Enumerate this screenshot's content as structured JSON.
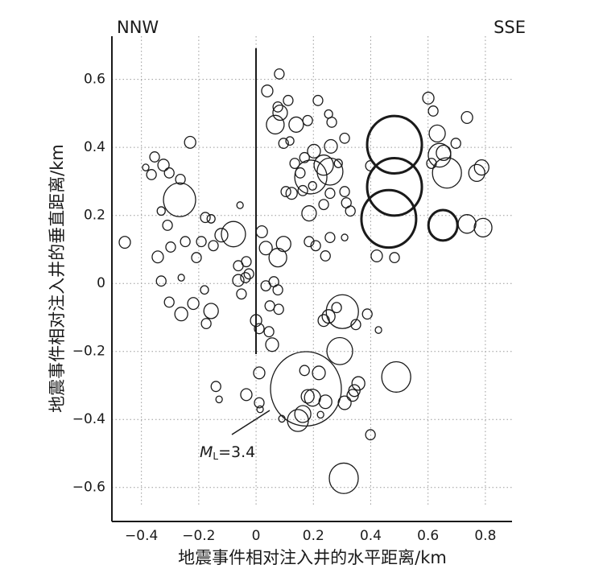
{
  "chart_data": {
    "type": "scatter",
    "x_label": "地震事件相对注入井的水平距离/km",
    "y_label": "地震事件相对注入井的垂直距离/km",
    "left_label": "NNW",
    "right_label": "SSE",
    "annotation": {
      "symbol": "M",
      "subscript": "L",
      "text": "=3.4"
    },
    "xlim": [
      -0.503,
      0.893
    ],
    "ylim": [
      -0.7,
      0.727
    ],
    "xticks": [
      {
        "value": -0.4,
        "label": "−0.4"
      },
      {
        "value": -0.2,
        "label": "−0.2"
      },
      0,
      0.2,
      0.4,
      0.6,
      0.8
    ],
    "yticks": [
      {
        "value": -0.6,
        "label": "−0.6"
      },
      {
        "value": -0.4,
        "label": "−0.4"
      },
      {
        "value": -0.2,
        "label": "−0.2"
      },
      0,
      0.2,
      0.4,
      0.6
    ],
    "grid": true,
    "series": [
      {
        "color": "#1a1a1a",
        "line_width": 1.3,
        "x": [
          -0.458,
          -0.354,
          -0.323,
          -0.365,
          -0.303,
          -0.264,
          -0.267,
          -0.23,
          -0.385,
          -0.331,
          -0.309,
          -0.177,
          -0.157,
          -0.343,
          -0.298,
          -0.247,
          -0.191,
          -0.149,
          -0.121,
          -0.079,
          -0.208,
          -0.331,
          -0.261,
          -0.303,
          -0.219,
          -0.261,
          -0.157,
          -0.18,
          -0.174,
          -0.14,
          -0.129,
          -0.056,
          -0.062,
          -0.034,
          -0.062,
          -0.037,
          -0.051,
          -0.025,
          0.0,
          0.011,
          -0.034,
          0.011,
          0.011,
          0.02,
          0.034,
          0.034,
          0.062,
          0.076,
          0.048,
          0.079,
          0.045,
          0.056,
          0.076,
          0.096,
          0.014,
          0.09,
          0.039,
          0.081,
          0.076,
          0.084,
          0.067,
          0.112,
          0.14,
          0.18,
          0.216,
          0.096,
          0.118,
          0.169,
          0.202,
          0.261,
          0.264,
          0.309,
          0.253,
          0.135,
          0.154,
          0.191,
          0.236,
          0.258,
          0.287,
          0.104,
          0.124,
          0.163,
          0.197,
          0.185,
          0.236,
          0.258,
          0.309,
          0.329,
          0.315,
          0.185,
          0.208,
          0.242,
          0.309,
          0.281,
          0.253,
          0.301,
          0.348,
          0.388,
          0.427,
          0.236,
          0.292,
          0.174,
          0.169,
          0.219,
          0.18,
          0.225,
          0.146,
          0.163,
          0.197,
          0.242,
          0.343,
          0.357,
          0.309,
          0.337,
          0.399,
          0.489,
          0.306,
          0.399,
          0.421,
          0.483,
          0.601,
          0.618,
          0.632,
          0.64,
          0.666,
          0.654,
          0.697,
          0.736,
          0.736,
          0.792,
          0.77,
          0.787,
          0.612,
          0.258
        ],
        "values": [
          0.121,
          0.372,
          0.348,
          0.32,
          0.325,
          0.306,
          0.246,
          0.415,
          0.341,
          0.213,
          0.171,
          0.194,
          0.19,
          0.078,
          0.107,
          0.123,
          0.123,
          0.111,
          0.142,
          0.145,
          0.076,
          0.007,
          0.017,
          -0.055,
          -0.059,
          -0.09,
          -0.081,
          -0.019,
          -0.118,
          -0.303,
          -0.341,
          0.23,
          0.052,
          0.064,
          0.009,
          0.017,
          -0.031,
          0.028,
          -0.109,
          -0.133,
          -0.327,
          -0.263,
          -0.351,
          0.152,
          0.104,
          -0.007,
          0.005,
          -0.019,
          -0.066,
          -0.076,
          -0.142,
          -0.18,
          0.076,
          0.116,
          -0.37,
          -0.398,
          0.566,
          0.616,
          0.519,
          0.502,
          0.467,
          0.538,
          0.467,
          0.479,
          0.538,
          0.412,
          0.419,
          0.37,
          0.389,
          0.403,
          0.474,
          0.427,
          0.498,
          0.353,
          0.325,
          0.313,
          0.348,
          0.329,
          0.353,
          0.27,
          0.265,
          0.273,
          0.287,
          0.206,
          0.232,
          0.265,
          0.27,
          0.213,
          0.237,
          0.123,
          0.111,
          0.081,
          0.135,
          -0.071,
          -0.097,
          -0.083,
          -0.121,
          -0.09,
          -0.137,
          -0.109,
          -0.199,
          -0.31,
          -0.256,
          -0.263,
          -0.332,
          -0.386,
          -0.403,
          -0.384,
          -0.336,
          -0.348,
          -0.315,
          -0.294,
          -0.351,
          -0.329,
          -0.445,
          -0.275,
          -0.573,
          0.346,
          0.081,
          0.076,
          0.545,
          0.507,
          0.441,
          0.377,
          0.325,
          0.384,
          0.412,
          0.488,
          0.175,
          0.164,
          0.325,
          0.341,
          0.353,
          0.135
        ],
        "sizes": [
          7,
          6,
          7,
          6,
          6,
          6,
          20,
          7,
          4,
          5,
          6,
          6,
          5,
          7,
          6,
          6,
          6,
          6,
          8,
          15,
          6,
          6,
          4,
          6,
          7,
          8,
          9,
          5,
          6,
          6,
          4,
          4,
          6,
          6,
          7,
          6,
          6,
          6,
          7,
          6,
          7,
          7,
          6,
          7,
          8,
          6,
          6,
          6,
          6,
          6,
          6,
          8,
          11,
          9,
          4,
          4,
          7,
          6,
          6,
          9,
          11,
          6,
          9,
          6,
          6,
          6,
          5,
          6,
          8,
          8,
          6,
          6,
          5,
          6,
          6,
          20,
          12,
          16,
          5,
          6,
          7,
          6,
          5,
          9,
          6,
          6,
          6,
          6,
          6,
          6,
          6,
          6,
          4,
          6,
          8,
          20,
          6,
          6,
          4,
          7,
          16,
          44,
          6,
          8,
          8,
          4,
          13,
          10,
          10,
          8,
          7,
          8,
          8,
          7,
          6,
          18,
          18,
          6,
          7,
          6,
          7,
          6,
          10,
          14,
          18,
          9,
          6,
          7,
          11,
          11,
          10,
          9,
          6,
          6
        ]
      },
      {
        "color": "#1a1a1a",
        "line_width": 3,
        "x": [
          0.483,
          0.483,
          0.463,
          0.652
        ],
        "values": [
          0.408,
          0.284,
          0.19,
          0.171
        ],
        "sizes": [
          34,
          34,
          34,
          18
        ]
      }
    ]
  }
}
